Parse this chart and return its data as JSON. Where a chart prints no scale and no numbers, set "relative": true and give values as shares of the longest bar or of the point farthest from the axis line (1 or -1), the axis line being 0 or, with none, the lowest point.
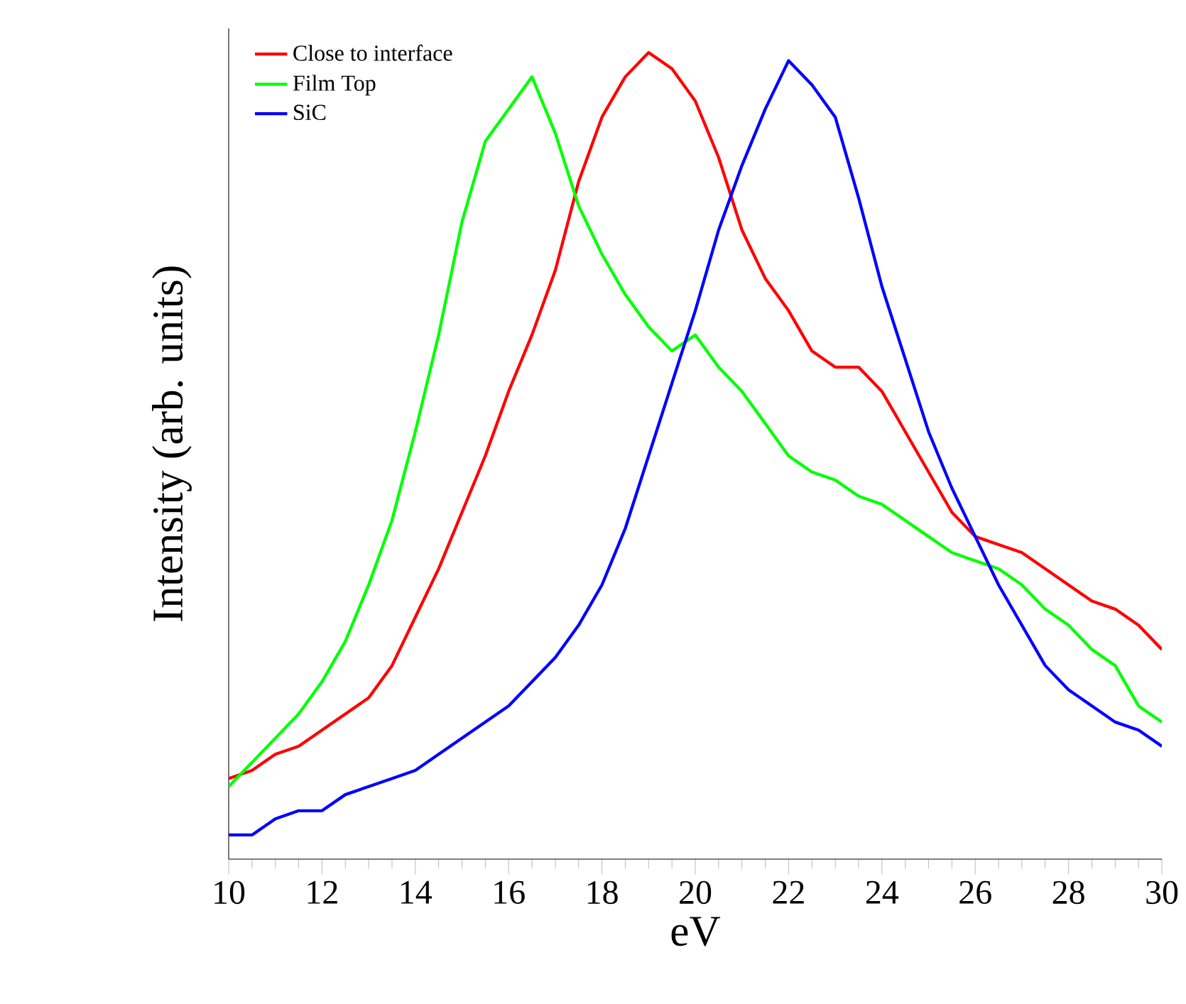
{
  "chart_data": {
    "type": "line",
    "xlabel": "eV",
    "ylabel": "Intensity (arb. units)",
    "relative": true,
    "legend": "top left",
    "xlim": [
      10,
      30
    ],
    "xticks": [
      10,
      12,
      14,
      16,
      18,
      20,
      22,
      24,
      26,
      28,
      30
    ],
    "x": [
      10,
      10.5,
      11,
      11.5,
      12,
      12.5,
      13,
      13.5,
      14,
      14.5,
      15,
      15.5,
      16,
      16.5,
      17,
      17.5,
      18,
      18.5,
      19,
      19.5,
      20,
      20.5,
      21,
      21.5,
      22,
      22.5,
      23,
      23.5,
      24,
      24.5,
      25,
      25.5,
      26,
      26.5,
      27,
      27.5,
      28,
      28.5,
      29,
      29.5,
      30
    ],
    "series": [
      {
        "name": "Close to interface",
        "color": "#ff0000",
        "values": [
          0.1,
          0.11,
          0.13,
          0.14,
          0.16,
          0.18,
          0.2,
          0.24,
          0.3,
          0.36,
          0.43,
          0.5,
          0.58,
          0.65,
          0.73,
          0.84,
          0.92,
          0.97,
          1.0,
          0.98,
          0.94,
          0.87,
          0.78,
          0.72,
          0.68,
          0.63,
          0.61,
          0.61,
          0.58,
          0.53,
          0.48,
          0.43,
          0.4,
          0.39,
          0.38,
          0.36,
          0.34,
          0.32,
          0.31,
          0.29,
          0.26
        ]
      },
      {
        "name": "Film Top",
        "color": "#00ff00",
        "values": [
          0.09,
          0.12,
          0.15,
          0.18,
          0.22,
          0.27,
          0.34,
          0.42,
          0.53,
          0.65,
          0.79,
          0.89,
          0.93,
          0.97,
          0.9,
          0.81,
          0.75,
          0.7,
          0.66,
          0.63,
          0.65,
          0.61,
          0.58,
          0.54,
          0.5,
          0.48,
          0.47,
          0.45,
          0.44,
          0.42,
          0.4,
          0.38,
          0.37,
          0.36,
          0.34,
          0.31,
          0.29,
          0.26,
          0.24,
          0.19,
          0.17
        ]
      },
      {
        "name": "SiC",
        "color": "#0000ff",
        "values": [
          0.03,
          0.03,
          0.05,
          0.06,
          0.06,
          0.08,
          0.09,
          0.1,
          0.11,
          0.13,
          0.15,
          0.17,
          0.19,
          0.22,
          0.25,
          0.29,
          0.34,
          0.41,
          0.5,
          0.59,
          0.68,
          0.78,
          0.86,
          0.93,
          0.99,
          0.96,
          0.92,
          0.82,
          0.71,
          0.62,
          0.53,
          0.46,
          0.4,
          0.34,
          0.29,
          0.24,
          0.21,
          0.19,
          0.17,
          0.16,
          0.14
        ]
      }
    ]
  }
}
